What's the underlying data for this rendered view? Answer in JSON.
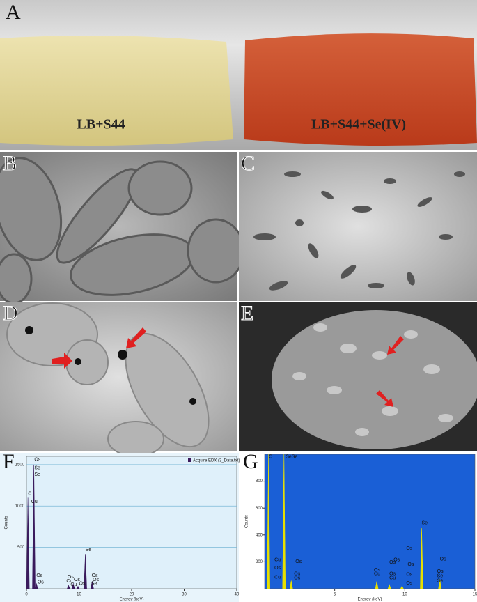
{
  "panels": {
    "a": {
      "label": "A",
      "left_caption": "LB+S44",
      "right_caption": "LB+S44+Se(IV)"
    },
    "b": {
      "label": "B"
    },
    "c": {
      "label": "C"
    },
    "d": {
      "label": "D"
    },
    "e": {
      "label": "E"
    }
  },
  "charts": [
    {
      "label": "F",
      "type": "spectrum",
      "legend": "Acquire EDX (3_Data.txt)",
      "x_label": "Energy (keV)",
      "y_label": "Counts",
      "color": "#3a1a5c",
      "xlim": [
        0,
        40
      ],
      "xticks": [
        0,
        10,
        20,
        30,
        40
      ],
      "ylim": [
        0,
        1600
      ],
      "yticks": [
        500,
        1000,
        1500
      ],
      "grid": true,
      "x": [
        0.28,
        1.4,
        1.9,
        8.0,
        8.9,
        9.8,
        11.2,
        12.5
      ],
      "values": [
        1100,
        1500,
        60,
        40,
        60,
        30,
        420,
        90
      ],
      "peak_labels": [
        {
          "text": "Os",
          "x": 1.5,
          "y": 1560
        },
        {
          "text": "Se",
          "x": 1.5,
          "y": 1460
        },
        {
          "text": "Se",
          "x": 1.5,
          "y": 1380
        },
        {
          "text": "C",
          "x": 0.3,
          "y": 1150
        },
        {
          "text": "Cu",
          "x": 0.9,
          "y": 1050
        },
        {
          "text": "Os",
          "x": 1.9,
          "y": 160
        },
        {
          "text": "Os",
          "x": 2.1,
          "y": 80
        },
        {
          "text": "Os",
          "x": 7.8,
          "y": 140
        },
        {
          "text": "Cu",
          "x": 7.6,
          "y": 90
        },
        {
          "text": "Os",
          "x": 9.0,
          "y": 110
        },
        {
          "text": "Cu",
          "x": 8.4,
          "y": 50
        },
        {
          "text": "Os",
          "x": 10.0,
          "y": 60
        },
        {
          "text": "Se",
          "x": 11.2,
          "y": 470
        },
        {
          "text": "Os",
          "x": 12.4,
          "y": 160
        },
        {
          "text": "Os",
          "x": 12.6,
          "y": 110
        },
        {
          "text": "Se",
          "x": 12.3,
          "y": 60
        }
      ]
    },
    {
      "label": "G",
      "type": "spectrum",
      "x_label": "Energy (keV)",
      "y_label": "Counts",
      "color": "#e8e000",
      "xlim": [
        0,
        15
      ],
      "xticks": [
        5,
        10,
        15
      ],
      "ylim": [
        0,
        1000
      ],
      "yticks": [
        200,
        400,
        600,
        800
      ],
      "grid": false,
      "x": [
        0.28,
        1.38,
        1.9,
        8.0,
        8.9,
        9.8,
        11.2,
        12.5
      ],
      "values": [
        1000,
        1000,
        60,
        55,
        30,
        20,
        450,
        70
      ],
      "peak_labels": [
        {
          "text": "C",
          "x": 0.3,
          "y": 980
        },
        {
          "text": "SeSe",
          "x": 1.5,
          "y": 980
        },
        {
          "text": "Cu",
          "x": 0.7,
          "y": 215
        },
        {
          "text": "Os",
          "x": 2.2,
          "y": 200
        },
        {
          "text": "Os",
          "x": 0.7,
          "y": 155
        },
        {
          "text": "Cu",
          "x": 0.7,
          "y": 85
        },
        {
          "text": "Os",
          "x": 2.1,
          "y": 110
        },
        {
          "text": "Os",
          "x": 2.1,
          "y": 80
        },
        {
          "text": "Os",
          "x": 7.8,
          "y": 140
        },
        {
          "text": "Cu",
          "x": 7.8,
          "y": 110
        },
        {
          "text": "Os",
          "x": 8.9,
          "y": 195
        },
        {
          "text": "Os",
          "x": 9.2,
          "y": 215
        },
        {
          "text": "Os",
          "x": 8.9,
          "y": 110
        },
        {
          "text": "Cu",
          "x": 8.9,
          "y": 80
        },
        {
          "text": "Os",
          "x": 10.1,
          "y": 300
        },
        {
          "text": "Os",
          "x": 10.2,
          "y": 180
        },
        {
          "text": "Os",
          "x": 10.1,
          "y": 105
        },
        {
          "text": "Os",
          "x": 10.1,
          "y": 40
        },
        {
          "text": "Se",
          "x": 11.2,
          "y": 490
        },
        {
          "text": "Os",
          "x": 12.5,
          "y": 220
        },
        {
          "text": "Os",
          "x": 12.3,
          "y": 130
        },
        {
          "text": "Se",
          "x": 12.3,
          "y": 95
        },
        {
          "text": "Se",
          "x": 12.3,
          "y": 60
        }
      ]
    }
  ]
}
